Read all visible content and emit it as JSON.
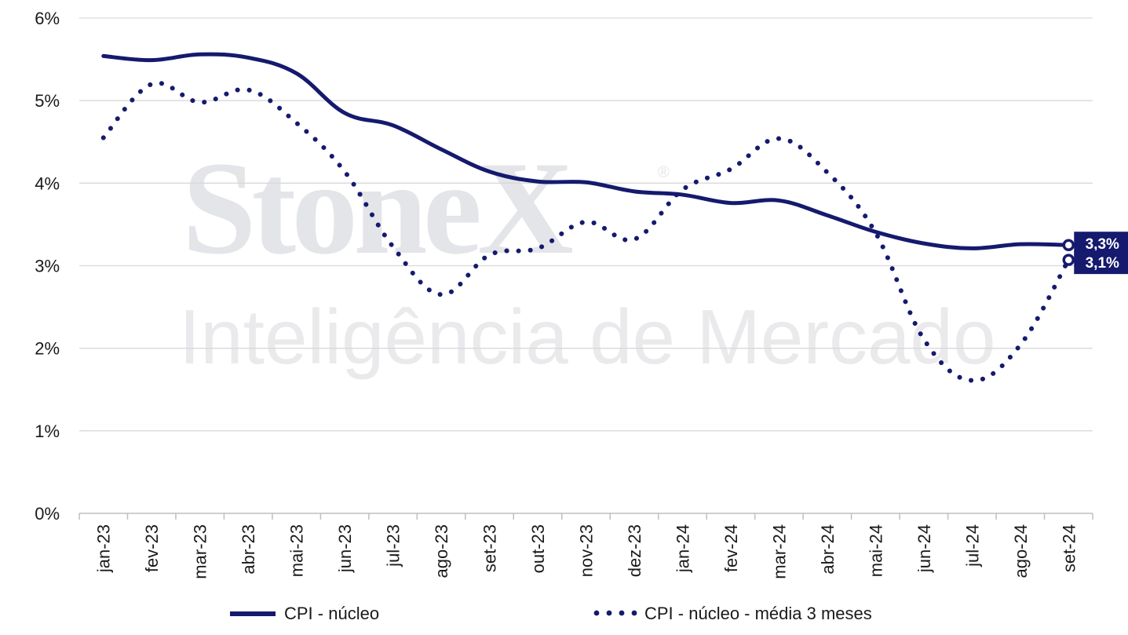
{
  "watermark": {
    "brand": "StoneX",
    "registered": "®",
    "tagline": "Inteligência de Mercado"
  },
  "colors": {
    "series": "#151a6e",
    "grid": "#d9d9d9",
    "axis": "#bfbfbf",
    "text": "#1a1a1a",
    "callout_bg": "#151a6e",
    "callout_text": "#ffffff"
  },
  "chart_data": {
    "type": "line",
    "title": "",
    "xlabel": "",
    "ylabel": "",
    "ylim": [
      0,
      6
    ],
    "yticks": [
      "0%",
      "1%",
      "2%",
      "3%",
      "4%",
      "5%",
      "6%"
    ],
    "grid": "horizontal",
    "legend_position": "bottom",
    "categories": [
      "jan-23",
      "fev-23",
      "mar-23",
      "abr-23",
      "mai-23",
      "jun-23",
      "jul-23",
      "ago-23",
      "set-23",
      "out-23",
      "nov-23",
      "dez-23",
      "jan-24",
      "fev-24",
      "mar-24",
      "abr-24",
      "mai-24",
      "jun-24",
      "jul-24",
      "ago-24",
      "set-24"
    ],
    "series": [
      {
        "name": "CPI - núcleo",
        "style": "solid",
        "values": [
          5.54,
          5.49,
          5.56,
          5.52,
          5.33,
          4.85,
          4.7,
          4.41,
          4.14,
          4.02,
          4.01,
          3.9,
          3.86,
          3.76,
          3.79,
          3.61,
          3.41,
          3.27,
          3.21,
          3.26,
          3.25
        ],
        "end_label": "3,3%"
      },
      {
        "name": "CPI - núcleo - média 3 meses",
        "style": "dotted",
        "values": [
          4.55,
          5.2,
          4.98,
          5.13,
          4.73,
          4.14,
          3.23,
          2.65,
          3.13,
          3.21,
          3.53,
          3.32,
          3.92,
          4.17,
          4.54,
          4.13,
          3.4,
          2.11,
          1.61,
          2.04,
          3.07
        ],
        "end_label": "3,1%"
      }
    ]
  }
}
